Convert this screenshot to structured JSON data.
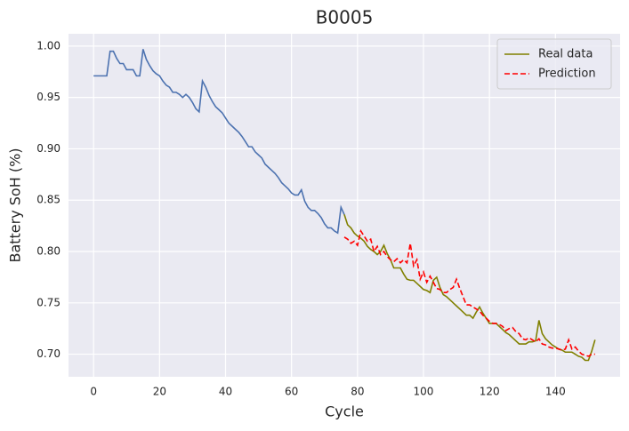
{
  "chart_data": {
    "type": "line",
    "title": "B0005",
    "xlabel": "Cycle",
    "ylabel": "Battery SoH (%)",
    "xlim": [
      -7.6,
      159.6
    ],
    "ylim": [
      0.678,
      1.012
    ],
    "xticks": [
      0,
      20,
      40,
      60,
      80,
      100,
      120,
      140
    ],
    "yticks": [
      {
        "value": 0.7,
        "label": "0.70"
      },
      {
        "value": 0.75,
        "label": "0.75"
      },
      {
        "value": 0.8,
        "label": "0.80"
      },
      {
        "value": 0.85,
        "label": "0.85"
      },
      {
        "value": 0.9,
        "label": "0.90"
      },
      {
        "value": 0.95,
        "label": "0.95"
      },
      {
        "value": 1.0,
        "label": "1.00"
      }
    ],
    "grid": true,
    "legend": "upper right",
    "series": [
      {
        "color": "#4c72b0",
        "linestyle": "solid",
        "x": [
          0,
          1,
          2,
          3,
          4,
          5,
          6,
          7,
          8,
          9,
          10,
          11,
          12,
          13,
          14,
          15,
          16,
          17,
          18,
          19,
          20,
          21,
          22,
          23,
          24,
          25,
          26,
          27,
          28,
          29,
          30,
          31,
          32,
          33,
          34,
          35,
          36,
          37,
          38,
          39,
          40,
          41,
          42,
          43,
          44,
          45,
          46,
          47,
          48,
          49,
          50,
          51,
          52,
          53,
          54,
          55,
          56,
          57,
          58,
          59,
          60,
          61,
          62,
          63,
          64,
          65,
          66,
          67,
          68,
          69,
          70,
          71,
          72,
          73,
          74,
          75,
          76
        ],
        "values": [
          0.971,
          0.971,
          0.971,
          0.971,
          0.971,
          0.995,
          0.995,
          0.988,
          0.983,
          0.983,
          0.977,
          0.977,
          0.977,
          0.971,
          0.971,
          0.997,
          0.987,
          0.981,
          0.976,
          0.973,
          0.971,
          0.966,
          0.962,
          0.96,
          0.955,
          0.955,
          0.953,
          0.95,
          0.953,
          0.95,
          0.945,
          0.939,
          0.936,
          0.966,
          0.96,
          0.952,
          0.946,
          0.941,
          0.938,
          0.935,
          0.93,
          0.925,
          0.922,
          0.919,
          0.916,
          0.912,
          0.907,
          0.902,
          0.902,
          0.897,
          0.894,
          0.891,
          0.885,
          0.882,
          0.879,
          0.876,
          0.872,
          0.867,
          0.864,
          0.861,
          0.857,
          0.855,
          0.855,
          0.86,
          0.849,
          0.843,
          0.84,
          0.84,
          0.837,
          0.833,
          0.827,
          0.823,
          0.823,
          0.82,
          0.818,
          0.843,
          0.836
        ]
      },
      {
        "name": "Real data",
        "color": "#808000",
        "linestyle": "solid",
        "x": [
          76,
          77,
          78,
          79,
          80,
          81,
          82,
          83,
          84,
          85,
          86,
          87,
          88,
          89,
          90,
          91,
          92,
          93,
          94,
          95,
          96,
          97,
          98,
          99,
          100,
          101,
          102,
          103,
          104,
          105,
          106,
          107,
          108,
          109,
          110,
          111,
          112,
          113,
          114,
          115,
          116,
          117,
          118,
          119,
          120,
          121,
          122,
          123,
          124,
          125,
          126,
          127,
          128,
          129,
          130,
          131,
          132,
          133,
          134,
          135,
          136,
          137,
          138,
          139,
          140,
          141,
          142,
          143,
          144,
          145,
          146,
          147,
          148,
          149,
          150,
          151,
          152
        ],
        "values": [
          0.836,
          0.826,
          0.823,
          0.818,
          0.815,
          0.813,
          0.81,
          0.805,
          0.802,
          0.8,
          0.797,
          0.8,
          0.806,
          0.798,
          0.792,
          0.784,
          0.784,
          0.784,
          0.778,
          0.773,
          0.772,
          0.772,
          0.769,
          0.766,
          0.763,
          0.762,
          0.76,
          0.772,
          0.775,
          0.765,
          0.758,
          0.756,
          0.753,
          0.75,
          0.747,
          0.744,
          0.741,
          0.738,
          0.738,
          0.735,
          0.741,
          0.746,
          0.74,
          0.735,
          0.73,
          0.73,
          0.73,
          0.727,
          0.724,
          0.721,
          0.719,
          0.716,
          0.713,
          0.71,
          0.71,
          0.71,
          0.712,
          0.712,
          0.713,
          0.733,
          0.72,
          0.715,
          0.712,
          0.709,
          0.707,
          0.705,
          0.704,
          0.702,
          0.702,
          0.702,
          0.7,
          0.698,
          0.697,
          0.694,
          0.694,
          0.703,
          0.714
        ]
      },
      {
        "name": "Prediction",
        "color": "#ff0000",
        "linestyle": "dashed",
        "x": [
          76,
          77,
          78,
          79,
          80,
          81,
          82,
          83,
          84,
          85,
          86,
          87,
          88,
          89,
          90,
          91,
          92,
          93,
          94,
          95,
          96,
          97,
          98,
          99,
          100,
          101,
          102,
          103,
          104,
          105,
          106,
          107,
          108,
          109,
          110,
          111,
          112,
          113,
          114,
          115,
          116,
          117,
          118,
          119,
          120,
          121,
          122,
          123,
          124,
          125,
          126,
          127,
          128,
          129,
          130,
          131,
          132,
          133,
          134,
          135,
          136,
          137,
          138,
          139,
          140,
          141,
          142,
          143,
          144,
          145,
          146,
          147,
          148,
          149,
          150,
          151,
          152
        ],
        "values": [
          0.814,
          0.812,
          0.808,
          0.81,
          0.806,
          0.82,
          0.815,
          0.81,
          0.812,
          0.8,
          0.805,
          0.797,
          0.8,
          0.795,
          0.792,
          0.79,
          0.793,
          0.789,
          0.792,
          0.789,
          0.808,
          0.786,
          0.792,
          0.773,
          0.78,
          0.77,
          0.776,
          0.77,
          0.764,
          0.763,
          0.76,
          0.76,
          0.763,
          0.765,
          0.773,
          0.764,
          0.756,
          0.748,
          0.748,
          0.746,
          0.744,
          0.742,
          0.738,
          0.735,
          0.732,
          0.73,
          0.73,
          0.729,
          0.727,
          0.723,
          0.725,
          0.726,
          0.722,
          0.72,
          0.715,
          0.714,
          0.716,
          0.714,
          0.712,
          0.715,
          0.71,
          0.709,
          0.707,
          0.706,
          0.706,
          0.705,
          0.704,
          0.705,
          0.714,
          0.705,
          0.707,
          0.703,
          0.7,
          0.699,
          0.698,
          0.7,
          0.7
        ]
      }
    ]
  }
}
